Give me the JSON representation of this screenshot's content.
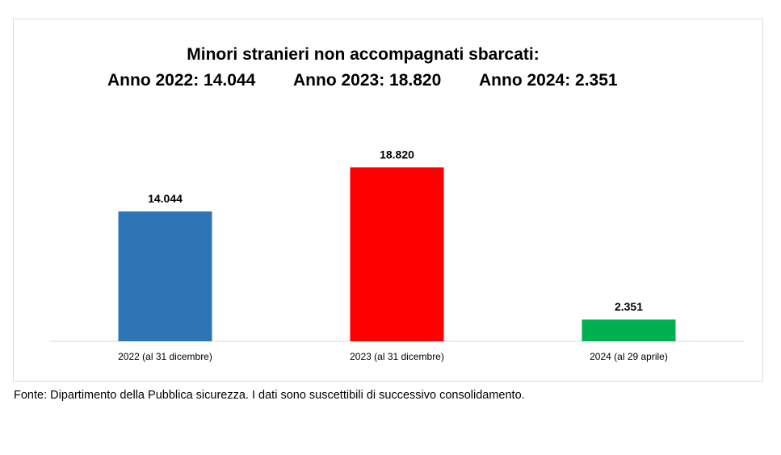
{
  "chart_data": {
    "type": "bar",
    "title": "Minori stranieri non accompagnati sbarcati:",
    "subtitle_items": [
      "Anno 2022: 14.044",
      "Anno 2023: 18.820",
      "Anno 2024: 2.351"
    ],
    "categories": [
      "2022 (al 31 dicembre)",
      "2023 (al 31 dicembre)",
      "2024 (al 29 aprile)"
    ],
    "values": [
      14044,
      18820,
      2351
    ],
    "value_labels": [
      "14.044",
      "18.820",
      "2.351"
    ],
    "colors": [
      "#2E75B6",
      "#FF0000",
      "#00B050"
    ],
    "ylim": [
      0,
      22000
    ],
    "grid": false,
    "legend": "none"
  },
  "footnote": "Fonte: Dipartimento della Pubblica sicurezza. I dati sono suscettibili di successivo consolidamento."
}
